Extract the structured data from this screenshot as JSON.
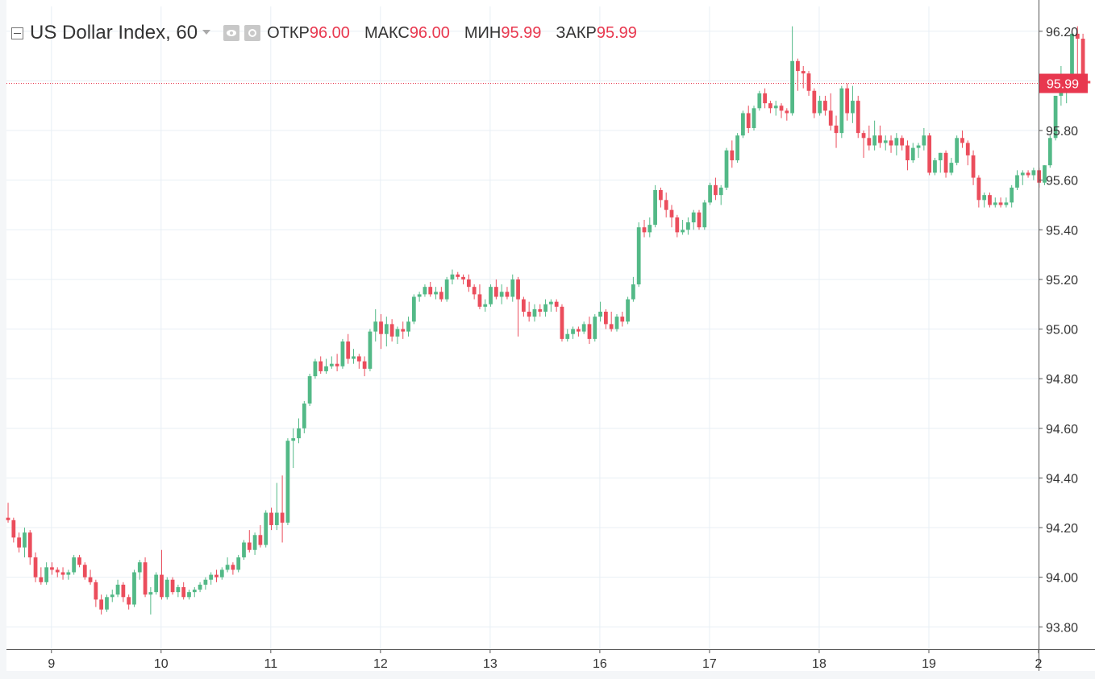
{
  "legend": {
    "symbol": "US Dollar Index, 60",
    "open_label": "ОТКР",
    "open_value": "96.00",
    "high_label": "МАКС",
    "high_value": "96.00",
    "low_label": "МИН",
    "low_value": "95.99",
    "close_label": "ЗАКР",
    "close_value": "95.99"
  },
  "price_badge": "95.99",
  "colors": {
    "up": "#53b987",
    "down": "#eb4d5c",
    "grid": "#e8eff5",
    "axis_text": "#333333",
    "price_line": "#e8384f"
  },
  "chart_data": {
    "type": "candlestick",
    "title": "US Dollar Index, 60",
    "interval": "60",
    "y_ticks": [
      93.8,
      94.0,
      94.2,
      94.4,
      94.6,
      94.8,
      95.0,
      95.2,
      95.4,
      95.6,
      95.8,
      96.0,
      96.2
    ],
    "y_tick_labels": [
      "93.80",
      "94.00",
      "94.20",
      "94.40",
      "94.60",
      "94.80",
      "95.00",
      "95.20",
      "95.40",
      "95.60",
      "95.80",
      "96.00",
      "96.20"
    ],
    "y_range": [
      93.71,
      96.3
    ],
    "x_ticks": [
      {
        "label": "9",
        "index": 7.9
      },
      {
        "label": "10",
        "index": 27.9
      },
      {
        "label": "11",
        "index": 47.9
      },
      {
        "label": "12",
        "index": 67.9
      },
      {
        "label": "13",
        "index": 87.9
      },
      {
        "label": "16",
        "index": 107.9
      },
      {
        "label": "17",
        "index": 127.9
      },
      {
        "label": "18",
        "index": 147.9
      },
      {
        "label": "19",
        "index": 167.9
      },
      {
        "label": "2",
        "index": 187.9
      }
    ],
    "x_range": [
      -0.3,
      187.9
    ],
    "last_price": 95.99,
    "candles": [
      [
        94.24,
        94.3,
        94.22,
        94.23
      ],
      [
        94.23,
        94.24,
        94.14,
        94.16
      ],
      [
        94.16,
        94.18,
        94.1,
        94.12
      ],
      [
        94.12,
        94.2,
        94.08,
        94.18
      ],
      [
        94.18,
        94.19,
        94.05,
        94.08
      ],
      [
        94.08,
        94.1,
        93.98,
        94.0
      ],
      [
        94.0,
        94.04,
        93.97,
        93.98
      ],
      [
        93.98,
        94.06,
        93.97,
        94.04
      ],
      [
        94.04,
        94.06,
        94.01,
        94.03
      ],
      [
        94.03,
        94.04,
        94.0,
        94.02
      ],
      [
        94.02,
        94.04,
        93.99,
        94.01
      ],
      [
        94.01,
        94.03,
        93.99,
        94.02
      ],
      [
        94.02,
        94.09,
        94.01,
        94.08
      ],
      [
        94.08,
        94.09,
        94.04,
        94.05
      ],
      [
        94.05,
        94.06,
        93.99,
        94.0
      ],
      [
        94.0,
        94.03,
        93.97,
        93.98
      ],
      [
        93.98,
        93.99,
        93.88,
        93.91
      ],
      [
        93.91,
        93.93,
        93.85,
        93.87
      ],
      [
        93.87,
        93.93,
        93.86,
        93.92
      ],
      [
        93.92,
        93.95,
        93.9,
        93.93
      ],
      [
        93.93,
        93.99,
        93.92,
        93.97
      ],
      [
        93.97,
        93.98,
        93.9,
        93.92
      ],
      [
        93.92,
        93.93,
        93.87,
        93.89
      ],
      [
        93.89,
        94.03,
        93.88,
        94.02
      ],
      [
        94.02,
        94.07,
        93.99,
        94.06
      ],
      [
        94.06,
        94.08,
        93.92,
        93.93
      ],
      [
        93.93,
        93.96,
        93.85,
        93.94
      ],
      [
        93.94,
        94.02,
        93.93,
        94.01
      ],
      [
        94.01,
        94.11,
        93.91,
        93.92
      ],
      [
        93.92,
        94.0,
        93.91,
        93.99
      ],
      [
        93.99,
        94.0,
        93.93,
        93.94
      ],
      [
        93.94,
        93.97,
        93.92,
        93.96
      ],
      [
        93.96,
        93.98,
        93.91,
        93.92
      ],
      [
        93.92,
        93.95,
        93.91,
        93.94
      ],
      [
        93.94,
        93.96,
        93.92,
        93.95
      ],
      [
        93.95,
        93.98,
        93.94,
        93.97
      ],
      [
        93.97,
        94.0,
        93.95,
        93.99
      ],
      [
        93.99,
        94.02,
        93.97,
        94.01
      ],
      [
        94.01,
        94.03,
        93.98,
        94.0
      ],
      [
        94.0,
        94.04,
        93.99,
        94.03
      ],
      [
        94.03,
        94.08,
        94.02,
        94.05
      ],
      [
        94.05,
        94.06,
        94.01,
        94.03
      ],
      [
        94.03,
        94.09,
        94.02,
        94.08
      ],
      [
        94.08,
        94.15,
        94.07,
        94.14
      ],
      [
        94.14,
        94.19,
        94.1,
        94.11
      ],
      [
        94.11,
        94.18,
        94.09,
        94.17
      ],
      [
        94.17,
        94.21,
        94.12,
        94.13
      ],
      [
        94.13,
        94.27,
        94.12,
        94.26
      ],
      [
        94.26,
        94.28,
        94.19,
        94.21
      ],
      [
        94.21,
        94.38,
        94.19,
        94.26
      ],
      [
        94.26,
        94.41,
        94.14,
        94.22
      ],
      [
        94.22,
        94.56,
        94.21,
        94.55
      ],
      [
        94.55,
        94.6,
        94.44,
        94.56
      ],
      [
        94.56,
        94.64,
        94.54,
        94.6
      ],
      [
        94.6,
        94.71,
        94.58,
        94.7
      ],
      [
        94.7,
        94.82,
        94.69,
        94.81
      ],
      [
        94.81,
        94.88,
        94.8,
        94.87
      ],
      [
        94.87,
        94.89,
        94.82,
        94.83
      ],
      [
        94.83,
        94.88,
        94.82,
        94.85
      ],
      [
        94.85,
        94.89,
        94.84,
        94.86
      ],
      [
        94.86,
        94.9,
        94.83,
        94.85
      ],
      [
        94.85,
        94.96,
        94.84,
        94.95
      ],
      [
        94.95,
        94.98,
        94.86,
        94.88
      ],
      [
        94.88,
        94.92,
        94.86,
        94.89
      ],
      [
        94.89,
        94.9,
        94.84,
        94.87
      ],
      [
        94.87,
        94.89,
        94.81,
        94.84
      ],
      [
        94.84,
        95.0,
        94.83,
        94.99
      ],
      [
        94.99,
        95.08,
        94.95,
        95.03
      ],
      [
        95.03,
        95.06,
        94.92,
        94.98
      ],
      [
        94.98,
        95.05,
        94.93,
        95.02
      ],
      [
        95.02,
        95.04,
        94.95,
        94.97
      ],
      [
        94.97,
        95.01,
        94.94,
        95.0
      ],
      [
        95.0,
        95.03,
        94.96,
        94.99
      ],
      [
        94.99,
        95.05,
        94.97,
        95.03
      ],
      [
        95.03,
        95.14,
        95.02,
        95.13
      ],
      [
        95.13,
        95.15,
        95.11,
        95.14
      ],
      [
        95.14,
        95.18,
        95.13,
        95.17
      ],
      [
        95.17,
        95.19,
        95.13,
        95.14
      ],
      [
        95.14,
        95.17,
        95.12,
        95.15
      ],
      [
        95.15,
        95.17,
        95.11,
        95.12
      ],
      [
        95.12,
        95.21,
        95.11,
        95.2
      ],
      [
        95.2,
        95.24,
        95.18,
        95.22
      ],
      [
        95.22,
        95.23,
        95.2,
        95.21
      ],
      [
        95.21,
        95.22,
        95.18,
        95.2
      ],
      [
        95.2,
        95.22,
        95.15,
        95.17
      ],
      [
        95.17,
        95.18,
        95.12,
        95.14
      ],
      [
        95.14,
        95.18,
        95.08,
        95.09
      ],
      [
        95.09,
        95.12,
        95.07,
        95.1
      ],
      [
        95.1,
        95.18,
        95.09,
        95.17
      ],
      [
        95.17,
        95.2,
        95.12,
        95.13
      ],
      [
        95.13,
        95.18,
        95.1,
        95.15
      ],
      [
        95.15,
        95.17,
        95.12,
        95.13
      ],
      [
        95.13,
        95.22,
        95.11,
        95.2
      ],
      [
        95.2,
        95.21,
        94.97,
        95.12
      ],
      [
        95.12,
        95.13,
        95.05,
        95.07
      ],
      [
        95.07,
        95.11,
        95.03,
        95.05
      ],
      [
        95.05,
        95.1,
        95.03,
        95.08
      ],
      [
        95.08,
        95.1,
        95.05,
        95.07
      ],
      [
        95.07,
        95.12,
        95.05,
        95.1
      ],
      [
        95.1,
        95.12,
        95.07,
        95.11
      ],
      [
        95.11,
        95.12,
        95.07,
        95.09
      ],
      [
        95.09,
        95.1,
        94.95,
        94.96
      ],
      [
        94.96,
        95.0,
        94.95,
        94.98
      ],
      [
        94.98,
        95.01,
        94.96,
        95.0
      ],
      [
        95.0,
        95.01,
        94.97,
        94.99
      ],
      [
        94.99,
        95.03,
        94.98,
        95.02
      ],
      [
        95.02,
        95.05,
        94.94,
        94.96
      ],
      [
        94.96,
        95.06,
        94.95,
        95.05
      ],
      [
        95.05,
        95.11,
        95.03,
        95.07
      ],
      [
        95.07,
        95.08,
        95.0,
        95.02
      ],
      [
        95.02,
        95.07,
        94.99,
        95.0
      ],
      [
        95.0,
        95.06,
        94.99,
        95.05
      ],
      [
        95.05,
        95.07,
        95.01,
        95.03
      ],
      [
        95.03,
        95.13,
        95.02,
        95.12
      ],
      [
        95.12,
        95.21,
        95.11,
        95.18
      ],
      [
        95.18,
        95.43,
        95.17,
        95.41
      ],
      [
        95.41,
        95.44,
        95.37,
        95.39
      ],
      [
        95.39,
        95.45,
        95.37,
        95.42
      ],
      [
        95.42,
        95.58,
        95.41,
        95.56
      ],
      [
        95.56,
        95.57,
        95.49,
        95.52
      ],
      [
        95.52,
        95.55,
        95.45,
        95.48
      ],
      [
        95.48,
        95.5,
        95.41,
        95.45
      ],
      [
        95.45,
        95.46,
        95.37,
        95.39
      ],
      [
        95.39,
        95.44,
        95.38,
        95.4
      ],
      [
        95.4,
        95.45,
        95.38,
        95.43
      ],
      [
        95.43,
        95.48,
        95.4,
        95.47
      ],
      [
        95.47,
        95.48,
        95.4,
        95.41
      ],
      [
        95.41,
        95.52,
        95.4,
        95.51
      ],
      [
        95.51,
        95.59,
        95.5,
        95.58
      ],
      [
        95.58,
        95.61,
        95.52,
        95.54
      ],
      [
        95.54,
        95.58,
        95.5,
        95.57
      ],
      [
        95.57,
        95.73,
        95.56,
        95.72
      ],
      [
        95.72,
        95.76,
        95.65,
        95.68
      ],
      [
        95.68,
        95.79,
        95.67,
        95.78
      ],
      [
        95.78,
        95.88,
        95.77,
        95.87
      ],
      [
        95.87,
        95.9,
        95.79,
        95.81
      ],
      [
        95.81,
        95.9,
        95.8,
        95.89
      ],
      [
        95.89,
        95.96,
        95.88,
        95.95
      ],
      [
        95.95,
        95.97,
        95.89,
        95.91
      ],
      [
        95.91,
        95.92,
        95.87,
        95.89
      ],
      [
        95.89,
        95.92,
        95.86,
        95.9
      ],
      [
        95.9,
        95.91,
        95.85,
        95.88
      ],
      [
        95.88,
        95.89,
        95.84,
        95.87
      ],
      [
        95.87,
        96.22,
        95.86,
        96.08
      ],
      [
        96.08,
        96.09,
        95.96,
        96.04
      ],
      [
        96.04,
        96.06,
        95.97,
        96.03
      ],
      [
        96.03,
        96.04,
        95.94,
        95.96
      ],
      [
        95.96,
        95.97,
        95.85,
        95.87
      ],
      [
        95.87,
        95.94,
        95.86,
        95.92
      ],
      [
        95.92,
        95.94,
        95.86,
        95.88
      ],
      [
        95.88,
        95.95,
        95.8,
        95.82
      ],
      [
        95.82,
        95.86,
        95.73,
        95.79
      ],
      [
        95.79,
        95.98,
        95.77,
        95.97
      ],
      [
        95.97,
        95.99,
        95.84,
        95.87
      ],
      [
        95.87,
        95.98,
        95.83,
        95.92
      ],
      [
        95.92,
        95.94,
        95.77,
        95.79
      ],
      [
        95.79,
        95.8,
        95.69,
        95.77
      ],
      [
        95.77,
        95.82,
        95.72,
        95.74
      ],
      [
        95.74,
        95.84,
        95.72,
        95.78
      ],
      [
        95.78,
        95.82,
        95.73,
        95.75
      ],
      [
        95.75,
        95.78,
        95.72,
        95.76
      ],
      [
        95.76,
        95.78,
        95.71,
        95.74
      ],
      [
        95.74,
        95.79,
        95.7,
        95.77
      ],
      [
        95.77,
        95.78,
        95.72,
        95.74
      ],
      [
        95.74,
        95.76,
        95.64,
        95.68
      ],
      [
        95.68,
        95.75,
        95.67,
        95.73
      ],
      [
        95.73,
        95.75,
        95.69,
        95.74
      ],
      [
        95.74,
        95.81,
        95.72,
        95.78
      ],
      [
        95.78,
        95.79,
        95.62,
        95.63
      ],
      [
        95.63,
        95.69,
        95.62,
        95.68
      ],
      [
        95.68,
        95.71,
        95.63,
        95.71
      ],
      [
        95.71,
        95.72,
        95.61,
        95.63
      ],
      [
        95.63,
        95.69,
        95.62,
        95.67
      ],
      [
        95.67,
        95.78,
        95.66,
        95.77
      ],
      [
        95.77,
        95.8,
        95.73,
        95.75
      ],
      [
        95.75,
        95.76,
        95.66,
        95.7
      ],
      [
        95.7,
        95.72,
        95.58,
        95.61
      ],
      [
        95.61,
        95.62,
        95.49,
        95.52
      ],
      [
        95.52,
        95.55,
        95.49,
        95.54
      ],
      [
        95.54,
        95.55,
        95.49,
        95.5
      ],
      [
        95.5,
        95.53,
        95.49,
        95.51
      ],
      [
        95.51,
        95.53,
        95.49,
        95.5
      ],
      [
        95.5,
        95.53,
        95.49,
        95.51
      ],
      [
        95.51,
        95.58,
        95.49,
        95.57
      ],
      [
        95.57,
        95.64,
        95.56,
        95.62
      ],
      [
        95.62,
        95.64,
        95.58,
        95.63
      ],
      [
        95.63,
        95.64,
        95.61,
        95.62
      ],
      [
        95.62,
        95.65,
        95.6,
        95.64
      ],
      [
        95.64,
        95.65,
        95.57,
        95.59
      ],
      [
        95.59,
        95.66,
        95.58,
        95.66
      ],
      [
        95.66,
        95.78,
        95.65,
        95.77
      ],
      [
        95.77,
        95.92,
        95.76,
        95.94
      ],
      [
        95.94,
        96.06,
        95.9,
        95.96
      ],
      [
        95.96,
        96.02,
        95.91,
        95.99
      ],
      [
        95.99,
        96.2,
        95.98,
        96.19
      ],
      [
        96.19,
        96.22,
        95.97,
        96.17
      ],
      [
        96.17,
        96.19,
        95.99,
        96.0
      ],
      [
        96.0,
        96.0,
        95.99,
        95.99
      ]
    ]
  }
}
